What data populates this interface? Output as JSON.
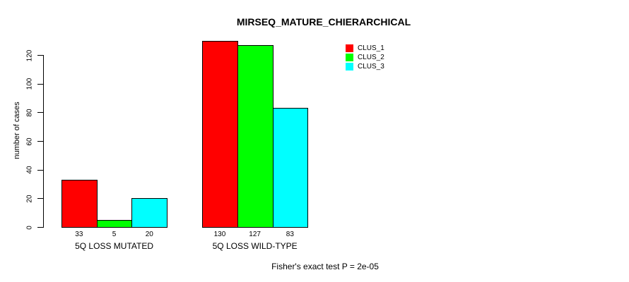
{
  "chart_data": {
    "type": "bar",
    "title": "MIRSEQ_MATURE_CHIERARCHICAL",
    "xlabel": "",
    "ylabel": "number of cases",
    "ylim": [
      0,
      120
    ],
    "yticks": [
      0,
      20,
      40,
      60,
      80,
      100,
      120
    ],
    "categories": [
      "5Q LOSS MUTATED",
      "5Q LOSS WILD-TYPE"
    ],
    "series": [
      {
        "name": "CLUS_1",
        "color": "#ff0000",
        "values": [
          33,
          130
        ]
      },
      {
        "name": "CLUS_2",
        "color": "#00ff00",
        "values": [
          5,
          127
        ]
      },
      {
        "name": "CLUS_3",
        "color": "#00ffff",
        "values": [
          20,
          83
        ]
      }
    ],
    "bar_value_labels": [
      [
        "33",
        "5",
        "20"
      ],
      [
        "130",
        "127",
        "83"
      ]
    ],
    "legend_position": "right",
    "grid": false,
    "annotation": "Fisher's exact test P = 2e-05"
  },
  "colors": {
    "background": "#ffffff",
    "axis": "#000000",
    "bar_border": "#000000"
  }
}
